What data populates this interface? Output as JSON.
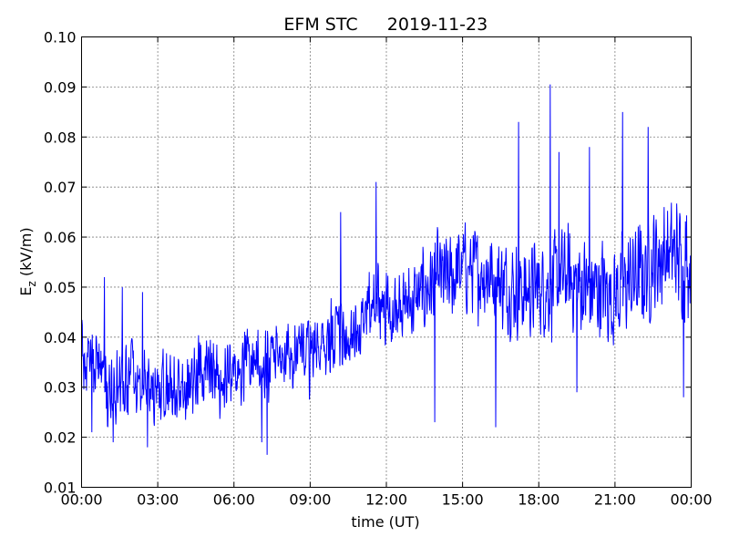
{
  "chart_data": {
    "type": "line",
    "title_left": "EFM STC",
    "title_right": "2019-11-23",
    "xlabel": "time (UT)",
    "ylabel_main": "E",
    "ylabel_sub": "z",
    "ylabel_rest": " (kV/m)",
    "xlim_hours": [
      0,
      24
    ],
    "xtick_labels": [
      "00:00",
      "03:00",
      "06:00",
      "09:00",
      "12:00",
      "15:00",
      "18:00",
      "21:00",
      "00:00"
    ],
    "ylim": [
      0.01,
      0.1
    ],
    "ytick_labels": [
      "0.01",
      "0.02",
      "0.03",
      "0.04",
      "0.05",
      "0.06",
      "0.07",
      "0.08",
      "0.09",
      "0.10"
    ],
    "grid": true,
    "grid_style": "dotted",
    "series": [
      {
        "color": "#0000ff",
        "samples_per_hour": 2,
        "values": [
          0.036,
          0.033,
          0.03,
          0.031,
          0.033,
          0.03,
          0.028,
          0.031,
          0.029,
          0.032,
          0.034,
          0.032,
          0.031,
          0.034,
          0.036,
          0.034,
          0.037,
          0.038,
          0.036,
          0.038,
          0.04,
          0.039,
          0.042,
          0.047,
          0.046,
          0.045,
          0.047,
          0.049,
          0.052,
          0.051,
          0.054,
          0.053,
          0.053,
          0.051,
          0.05,
          0.049,
          0.05,
          0.05,
          0.052,
          0.051,
          0.049,
          0.05,
          0.048,
          0.051,
          0.052,
          0.055,
          0.057,
          0.056,
          0.055,
          0.056,
          0.055,
          0.053,
          0.056,
          0.058,
          0.05,
          0.049
        ],
        "noise_amplitude": 0.009,
        "spikes": [
          {
            "t": 0.9,
            "v": 0.052
          },
          {
            "t": 1.6,
            "v": 0.05
          },
          {
            "t": 2.4,
            "v": 0.049
          },
          {
            "t": 0.4,
            "v": 0.021
          },
          {
            "t": 1.25,
            "v": 0.019
          },
          {
            "t": 2.6,
            "v": 0.018
          },
          {
            "t": 7.3,
            "v": 0.0165
          },
          {
            "t": 7.1,
            "v": 0.019
          },
          {
            "t": 10.2,
            "v": 0.065
          },
          {
            "t": 11.6,
            "v": 0.071
          },
          {
            "t": 13.9,
            "v": 0.023
          },
          {
            "t": 16.3,
            "v": 0.022
          },
          {
            "t": 17.2,
            "v": 0.083
          },
          {
            "t": 18.45,
            "v": 0.0905
          },
          {
            "t": 18.8,
            "v": 0.077
          },
          {
            "t": 19.5,
            "v": 0.029
          },
          {
            "t": 20.0,
            "v": 0.078
          },
          {
            "t": 21.3,
            "v": 0.085
          },
          {
            "t": 22.3,
            "v": 0.082
          },
          {
            "t": 23.7,
            "v": 0.028
          }
        ]
      }
    ]
  }
}
